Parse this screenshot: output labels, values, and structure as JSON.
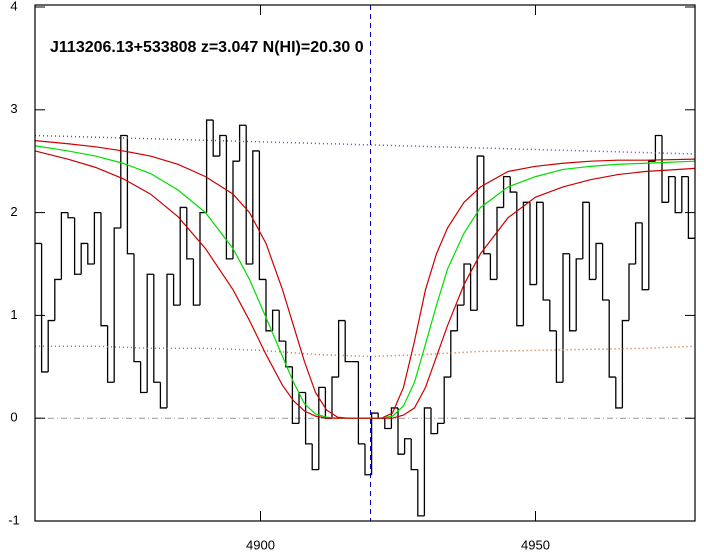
{
  "chart_data": {
    "type": "spectrum",
    "annotation": "J113206.13+533808 z=3.047 N(HI)=20.30 0",
    "xlim": [
      4859,
      4979
    ],
    "xticks": [
      4900,
      4950
    ],
    "ylim": [
      -1,
      4
    ],
    "yticks": [
      -1,
      0,
      1,
      2,
      3,
      4
    ],
    "vline": {
      "value": 4920,
      "color": "#0000c0"
    },
    "hline": {
      "value": 0,
      "color": "#999999"
    },
    "series": [
      {
        "drawstyle": "steps-mid",
        "color": "#000000",
        "x": [
          4859.6,
          4860.8,
          4862.0,
          4863.2,
          4864.4,
          4865.6,
          4866.8,
          4868.0,
          4869.2,
          4870.4,
          4871.6,
          4872.8,
          4874.0,
          4875.2,
          4876.4,
          4877.6,
          4878.8,
          4880.0,
          4881.2,
          4882.4,
          4883.6,
          4884.8,
          4886.0,
          4887.2,
          4888.4,
          4889.6,
          4890.8,
          4892.0,
          4893.2,
          4894.4,
          4895.6,
          4896.8,
          4898.0,
          4899.2,
          4900.4,
          4901.6,
          4902.8,
          4904.0,
          4905.2,
          4906.4,
          4907.6,
          4908.8,
          4910.0,
          4911.2,
          4912.4,
          4913.6,
          4914.8,
          4916.0,
          4917.2,
          4918.4,
          4919.6,
          4920.8,
          4922.0,
          4923.2,
          4924.4,
          4925.6,
          4926.8,
          4928.0,
          4929.2,
          4930.4,
          4931.6,
          4932.8,
          4934.0,
          4935.2,
          4936.4,
          4937.6,
          4938.8,
          4940.0,
          4941.2,
          4942.4,
          4943.6,
          4944.8,
          4946.0,
          4947.2,
          4948.4,
          4949.6,
          4950.8,
          4952.0,
          4953.2,
          4954.4,
          4955.6,
          4956.8,
          4958.0,
          4959.2,
          4960.4,
          4961.6,
          4962.8,
          4964.0,
          4965.2,
          4966.4,
          4967.6,
          4968.8,
          4970.0,
          4971.2,
          4972.4,
          4973.6,
          4974.8,
          4976.0,
          4977.2,
          4978.4
        ],
        "values": [
          1.7,
          0.45,
          0.95,
          1.35,
          2.0,
          1.95,
          1.4,
          1.7,
          1.5,
          2.0,
          0.9,
          0.35,
          1.85,
          2.75,
          1.6,
          0.55,
          0.25,
          1.4,
          0.35,
          0.1,
          1.4,
          1.1,
          2.05,
          1.55,
          1.1,
          2.0,
          2.9,
          2.55,
          2.75,
          1.55,
          2.5,
          2.85,
          1.5,
          2.6,
          1.35,
          0.85,
          1.05,
          0.75,
          0.5,
          -0.05,
          0.25,
          -0.25,
          -0.5,
          0.3,
          0.0,
          0.4,
          0.95,
          0.55,
          0.55,
          -0.25,
          -0.55,
          0.05,
          0.0,
          -0.1,
          0.1,
          -0.35,
          -0.2,
          -0.5,
          -0.95,
          0.1,
          -0.15,
          -0.05,
          0.4,
          0.85,
          1.1,
          1.5,
          1.05,
          2.55,
          1.6,
          1.35,
          2.05,
          2.35,
          2.2,
          0.9,
          2.1,
          1.3,
          2.1,
          1.15,
          0.85,
          0.35,
          1.6,
          0.85,
          1.55,
          2.1,
          1.35,
          1.7,
          1.15,
          0.4,
          0.1,
          0.95,
          1.5,
          1.9,
          1.25,
          2.5,
          2.75,
          2.1,
          2.35,
          2.0,
          2.35,
          1.75
        ]
      },
      {
        "drawstyle": "line",
        "linestyle": "dotted",
        "color": "#d2691e",
        "x": [
          4859,
          4870,
          4880,
          4890,
          4900,
          4910,
          4920,
          4930,
          4940,
          4950,
          4960,
          4970,
          4979
        ],
        "values": [
          0.7,
          0.7,
          0.68,
          0.68,
          0.66,
          0.62,
          0.6,
          0.62,
          0.65,
          0.66,
          0.67,
          0.68,
          0.7
        ]
      },
      {
        "drawstyle": "line",
        "linestyle": "dotted",
        "color": "#8a2be2",
        "x": [
          4859,
          4979
        ],
        "values": [
          2.75,
          2.57
        ]
      },
      {
        "drawstyle": "line",
        "color": "#cc0000",
        "x": [
          4859,
          4865,
          4870,
          4875,
          4880,
          4885,
          4890,
          4895,
          4898,
          4901,
          4904,
          4906,
          4908,
          4910,
          4912,
          4914,
          4916,
          4922,
          4924,
          4926,
          4928,
          4930,
          4932,
          4934,
          4937,
          4940,
          4945,
          4950,
          4955,
          4960,
          4965,
          4970,
          4979
        ],
        "values": [
          2.7,
          2.67,
          2.64,
          2.6,
          2.55,
          2.47,
          2.35,
          2.18,
          2.0,
          1.7,
          1.25,
          0.9,
          0.55,
          0.25,
          0.08,
          0.01,
          0,
          0,
          0.05,
          0.3,
          0.75,
          1.25,
          1.6,
          1.85,
          2.1,
          2.25,
          2.4,
          2.45,
          2.48,
          2.5,
          2.51,
          2.51,
          2.52
        ]
      },
      {
        "drawstyle": "line",
        "color": "#00dd00",
        "x": [
          4859,
          4865,
          4870,
          4875,
          4880,
          4885,
          4890,
          4895,
          4898,
          4901,
          4904,
          4906,
          4908,
          4910,
          4912,
          4914,
          4918,
          4922,
          4924,
          4926,
          4928,
          4930,
          4932,
          4934,
          4937,
          4940,
          4945,
          4950,
          4955,
          4960,
          4965,
          4970,
          4979
        ],
        "values": [
          2.65,
          2.6,
          2.55,
          2.48,
          2.38,
          2.22,
          2.0,
          1.65,
          1.35,
          0.98,
          0.6,
          0.35,
          0.14,
          0.04,
          0.01,
          0,
          0,
          0,
          0.02,
          0.12,
          0.35,
          0.72,
          1.1,
          1.45,
          1.8,
          2.05,
          2.25,
          2.35,
          2.42,
          2.45,
          2.47,
          2.48,
          2.5
        ]
      },
      {
        "drawstyle": "line",
        "color": "#cc0000",
        "x": [
          4859,
          4865,
          4870,
          4875,
          4880,
          4885,
          4890,
          4895,
          4898,
          4901,
          4904,
          4906,
          4908,
          4910,
          4912,
          4924,
          4926,
          4928,
          4930,
          4932,
          4934,
          4937,
          4940,
          4945,
          4950,
          4955,
          4960,
          4965,
          4970,
          4979
        ],
        "values": [
          2.6,
          2.52,
          2.44,
          2.33,
          2.18,
          1.96,
          1.65,
          1.25,
          0.95,
          0.62,
          0.32,
          0.17,
          0.07,
          0.02,
          0,
          0,
          0.03,
          0.1,
          0.3,
          0.6,
          0.9,
          1.3,
          1.6,
          1.95,
          2.15,
          2.25,
          2.32,
          2.37,
          2.4,
          2.43
        ]
      }
    ]
  }
}
